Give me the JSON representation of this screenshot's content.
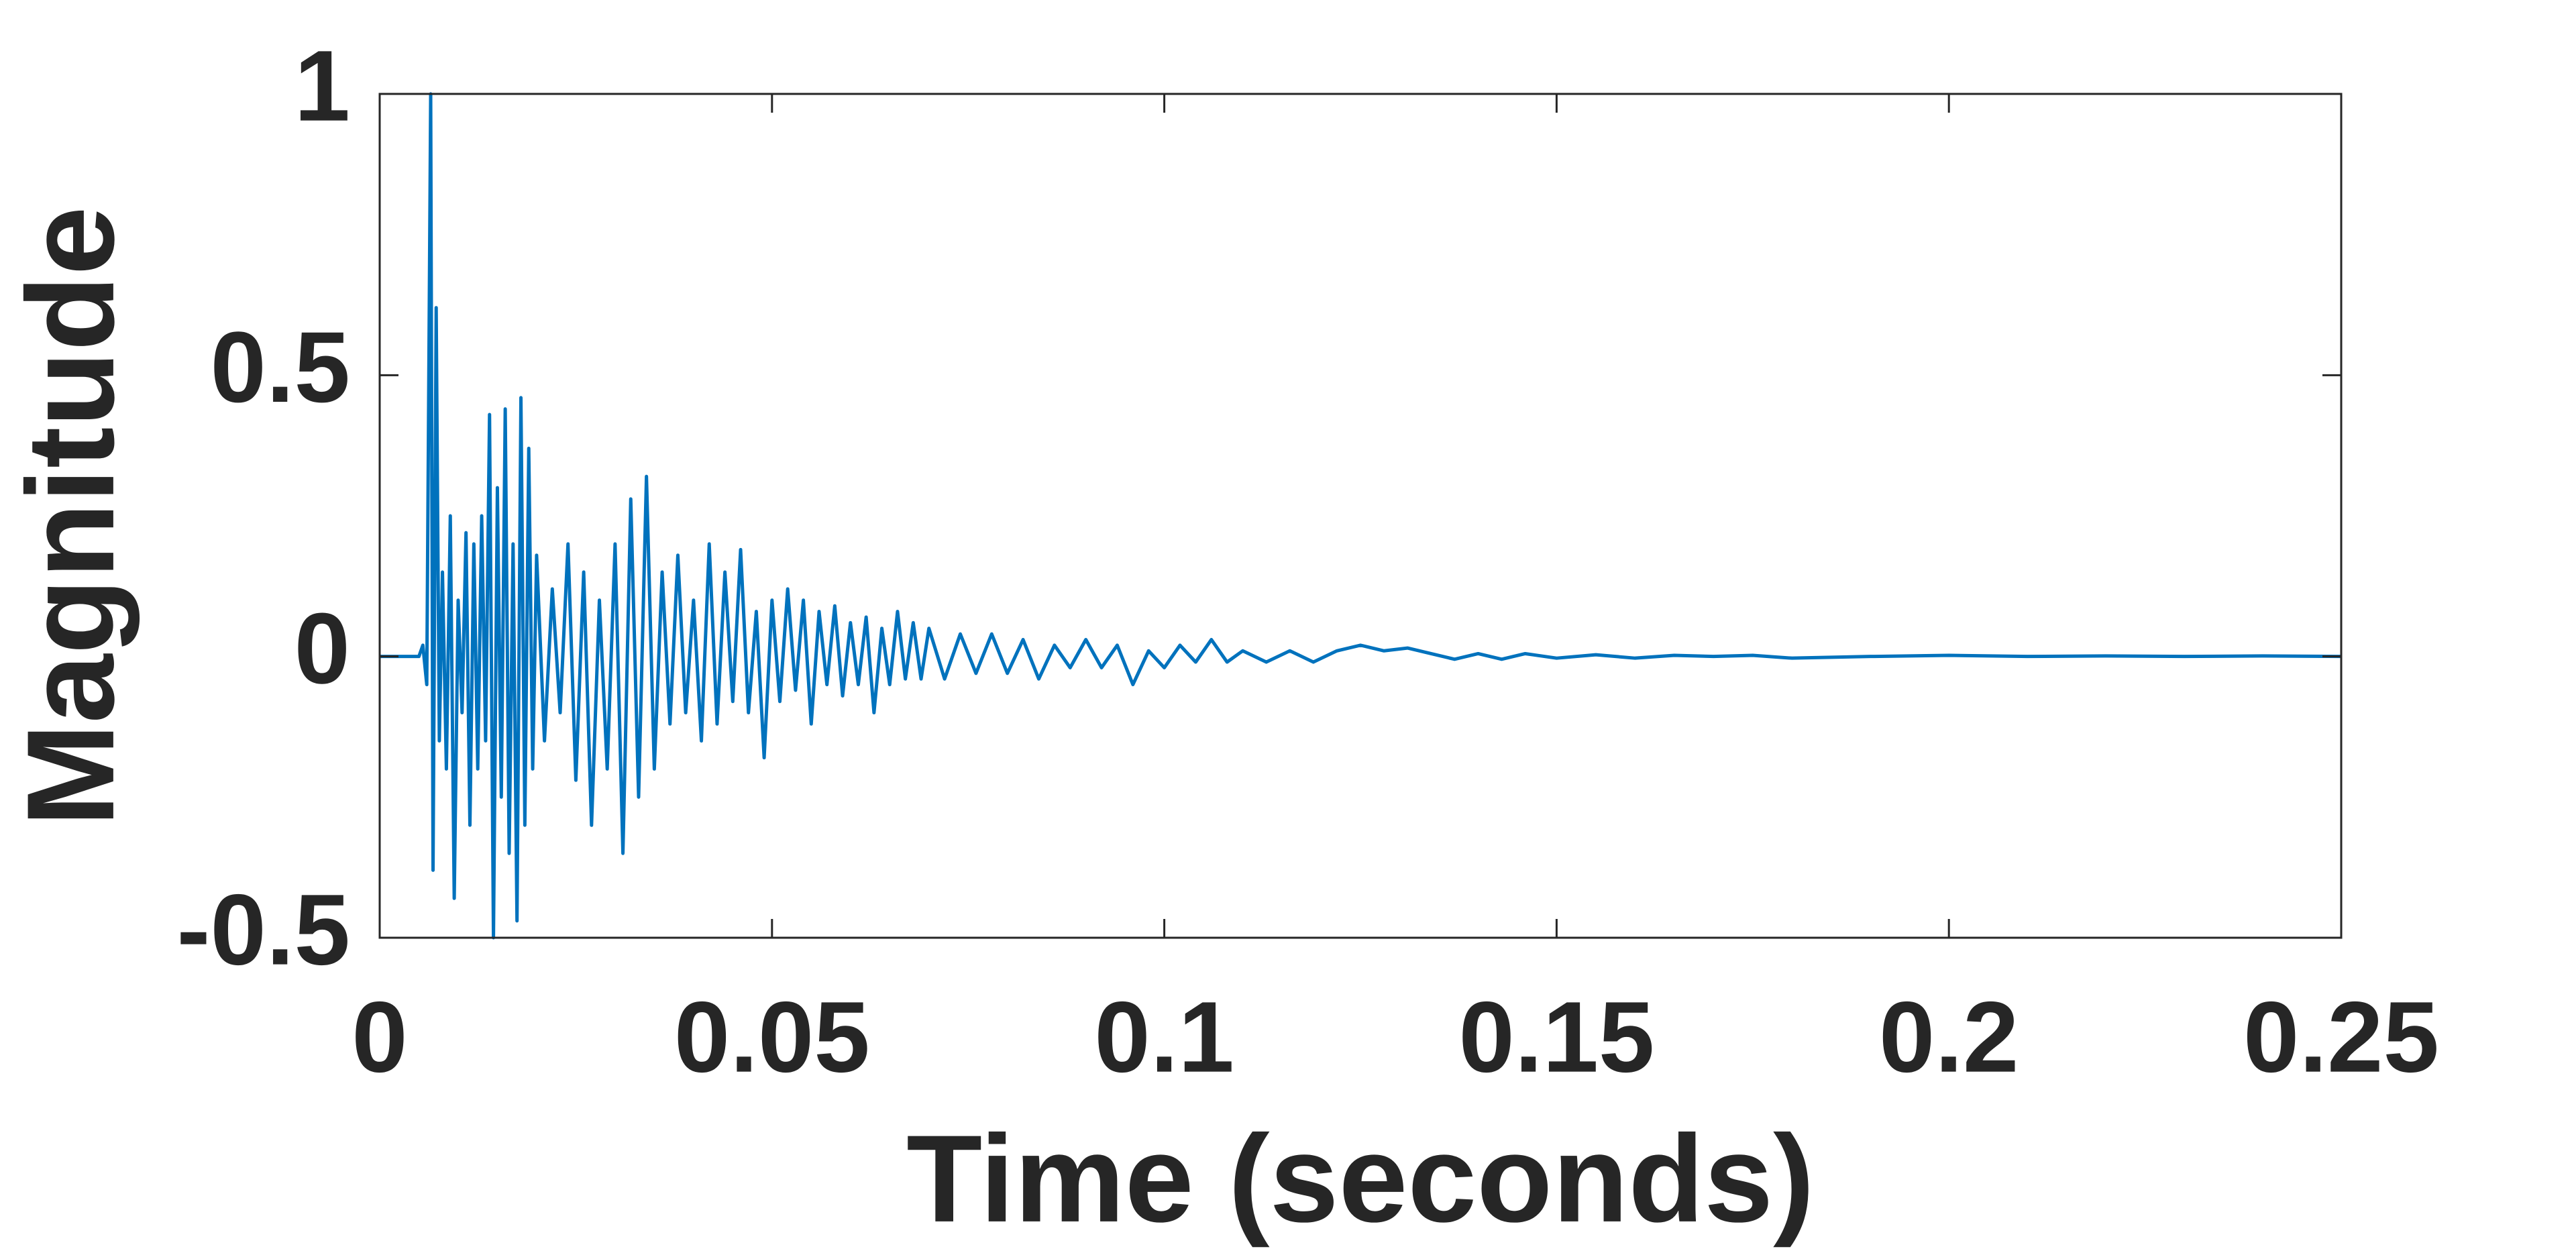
{
  "chart_data": {
    "type": "line",
    "xlabel": "Time (seconds)",
    "ylabel": "Magnitude",
    "color": "#0072bd",
    "xlim": [
      0,
      0.25
    ],
    "ylim": [
      -0.5,
      1
    ],
    "xticks": [
      0,
      0.05,
      0.1,
      0.15,
      0.2,
      0.25
    ],
    "yticks": [
      -0.5,
      0,
      0.5,
      1
    ],
    "grid": false,
    "x": [
      0,
      0.005,
      0.0055,
      0.006,
      0.0065,
      0.0068,
      0.0072,
      0.0076,
      0.008,
      0.0085,
      0.009,
      0.0095,
      0.01,
      0.0105,
      0.011,
      0.0115,
      0.012,
      0.0125,
      0.013,
      0.0135,
      0.014,
      0.0145,
      0.015,
      0.0155,
      0.016,
      0.0165,
      0.017,
      0.0175,
      0.018,
      0.0185,
      0.019,
      0.0195,
      0.02,
      0.021,
      0.022,
      0.023,
      0.024,
      0.025,
      0.026,
      0.027,
      0.028,
      0.029,
      0.03,
      0.031,
      0.032,
      0.033,
      0.034,
      0.035,
      0.036,
      0.037,
      0.038,
      0.039,
      0.04,
      0.041,
      0.042,
      0.043,
      0.044,
      0.045,
      0.046,
      0.047,
      0.048,
      0.049,
      0.05,
      0.051,
      0.052,
      0.053,
      0.054,
      0.055,
      0.056,
      0.057,
      0.058,
      0.059,
      0.06,
      0.061,
      0.062,
      0.063,
      0.064,
      0.065,
      0.066,
      0.067,
      0.068,
      0.069,
      0.07,
      0.072,
      0.074,
      0.076,
      0.078,
      0.08,
      0.082,
      0.084,
      0.086,
      0.088,
      0.09,
      0.092,
      0.094,
      0.096,
      0.098,
      0.1,
      0.102,
      0.104,
      0.106,
      0.108,
      0.11,
      0.113,
      0.116,
      0.119,
      0.122,
      0.125,
      0.128,
      0.131,
      0.134,
      0.137,
      0.14,
      0.143,
      0.146,
      0.15,
      0.155,
      0.16,
      0.165,
      0.17,
      0.175,
      0.18,
      0.19,
      0.2,
      0.21,
      0.22,
      0.23,
      0.24,
      0.25
    ],
    "values": [
      0,
      0,
      0.02,
      -0.05,
      1,
      -0.38,
      0.62,
      -0.15,
      0.15,
      -0.2,
      0.25,
      -0.43,
      0.1,
      -0.1,
      0.22,
      -0.3,
      0.2,
      -0.2,
      0.25,
      -0.15,
      0.43,
      -0.5,
      0.3,
      -0.25,
      0.44,
      -0.35,
      0.2,
      -0.47,
      0.46,
      -0.3,
      0.37,
      -0.2,
      0.18,
      -0.15,
      0.12,
      -0.1,
      0.2,
      -0.22,
      0.15,
      -0.3,
      0.1,
      -0.2,
      0.2,
      -0.35,
      0.28,
      -0.25,
      0.32,
      -0.2,
      0.15,
      -0.12,
      0.18,
      -0.1,
      0.1,
      -0.15,
      0.2,
      -0.12,
      0.15,
      -0.08,
      0.19,
      -0.1,
      0.08,
      -0.18,
      0.1,
      -0.08,
      0.12,
      -0.06,
      0.1,
      -0.12,
      0.08,
      -0.05,
      0.09,
      -0.07,
      0.06,
      -0.05,
      0.07,
      -0.1,
      0.05,
      -0.05,
      0.08,
      -0.04,
      0.06,
      -0.04,
      0.05,
      -0.04,
      0.04,
      -0.03,
      0.04,
      -0.03,
      0.03,
      -0.04,
      0.02,
      -0.02,
      0.03,
      -0.02,
      0.02,
      -0.05,
      0.01,
      -0.02,
      0.02,
      -0.01,
      0.03,
      -0.01,
      0.01,
      -0.01,
      0.01,
      -0.01,
      0.01,
      0.02,
      0.01,
      0.015,
      0.005,
      -0.005,
      0.005,
      -0.005,
      0.005,
      -0.003,
      0.003,
      -0.003,
      0.002,
      0,
      0.002,
      -0.003,
      0,
      0.002,
      0,
      0.001,
      0,
      0.001,
      0
    ]
  }
}
